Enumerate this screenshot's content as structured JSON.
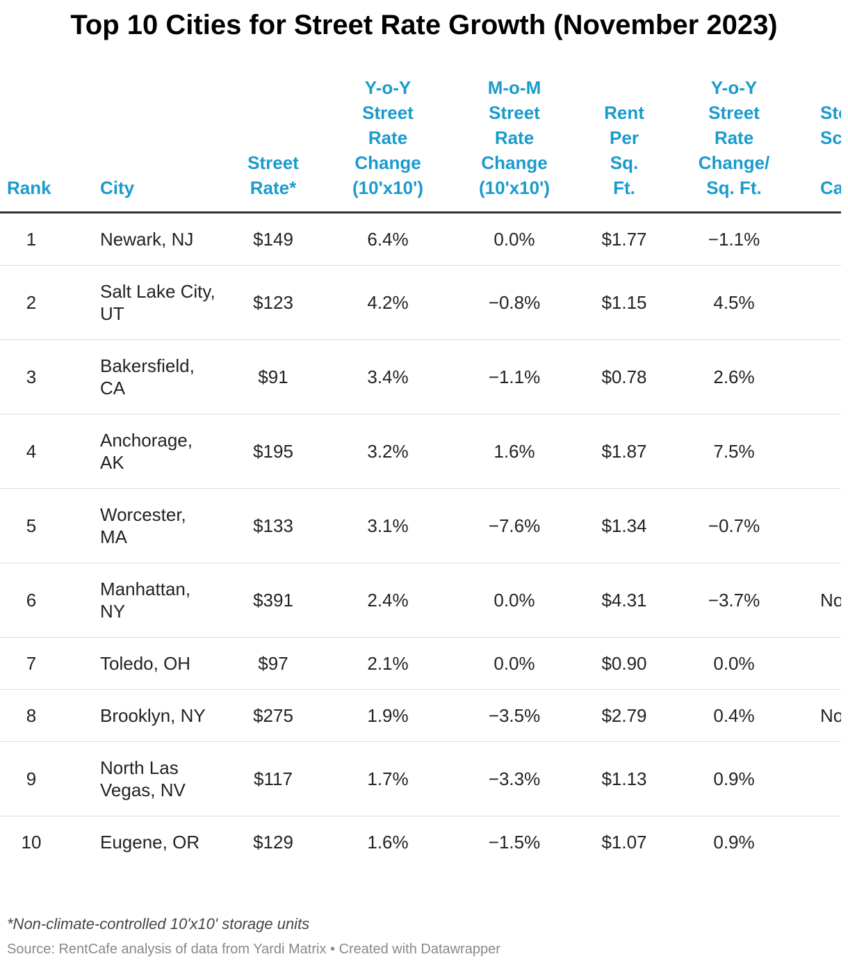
{
  "header": {
    "title": "Top 10 Cities for Street Rate Growth (November 2023)"
  },
  "table": {
    "columns": [
      "Rank",
      "City",
      "Street\nRate*",
      "Y-o-Y\nStreet\nRate\nChange\n(10'x10')",
      "M-o-M\nStreet\nRate\nChange\n(10'x10')",
      "Rent\nPer\nSq.\nFt.",
      "Y-o-Y\nStreet\nRate\nChange/\nSq. Ft.",
      "Sto\nSc\n\nCa"
    ],
    "rows": [
      [
        1,
        "Newark, NJ",
        "$149",
        "6.4%",
        "0.0%",
        "$1.77",
        "−1.1%",
        null
      ],
      [
        2,
        "Salt Lake City, UT",
        "$123",
        "4.2%",
        "−0.8%",
        "$1.15",
        "4.5%",
        null
      ],
      [
        3,
        "Bakersfield, CA",
        "$91",
        "3.4%",
        "−1.1%",
        "$0.78",
        "2.6%",
        null
      ],
      [
        4,
        "Anchorage, AK",
        "$195",
        "3.2%",
        "1.6%",
        "$1.87",
        "7.5%",
        null
      ],
      [
        5,
        "Worcester, MA",
        "$133",
        "3.1%",
        "−7.6%",
        "$1.34",
        "−0.7%",
        null
      ],
      [
        6,
        "Manhattan, NY",
        "$391",
        "2.4%",
        "0.0%",
        "$4.31",
        "−3.7%",
        "No"
      ],
      [
        7,
        "Toledo, OH",
        "$97",
        "2.1%",
        "0.0%",
        "$0.90",
        "0.0%",
        null
      ],
      [
        8,
        "Brooklyn, NY",
        "$275",
        "1.9%",
        "−3.5%",
        "$2.79",
        "0.4%",
        "No"
      ],
      [
        9,
        "North Las Vegas, NV",
        "$117",
        "1.7%",
        "−3.3%",
        "$1.13",
        "0.9%",
        null
      ],
      [
        10,
        "Eugene, OR",
        "$129",
        "1.6%",
        "−1.5%",
        "$1.07",
        "0.9%",
        null
      ]
    ]
  },
  "footer": {
    "note": "*Non-climate-controlled 10'x10' storage units",
    "source": "Source: RentCafe analysis of data from Yardi Matrix • Created with Datawrapper"
  }
}
